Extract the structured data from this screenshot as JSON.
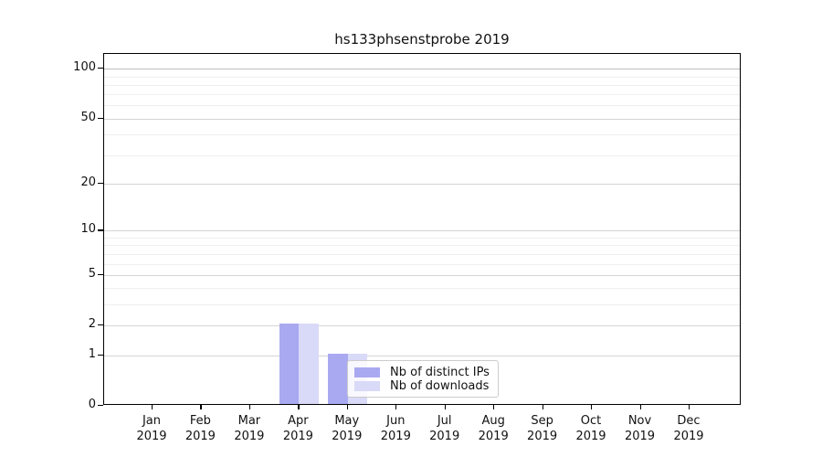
{
  "chart_data": {
    "type": "bar",
    "title": "hs133phsenstprobe 2019",
    "categories": [
      "Jan",
      "Feb",
      "Mar",
      "Apr",
      "May",
      "Jun",
      "Jul",
      "Aug",
      "Sep",
      "Oct",
      "Nov",
      "Dec"
    ],
    "category_year": "2019",
    "series": [
      {
        "name": "Nb of distinct IPs",
        "color": "#a9a9f1",
        "values": [
          0,
          0,
          0,
          2,
          1,
          0,
          0,
          0,
          0,
          0,
          0,
          0
        ]
      },
      {
        "name": "Nb of downloads",
        "color": "#d9d9f8",
        "values": [
          0,
          0,
          0,
          2,
          1,
          0,
          0,
          0,
          0,
          0,
          0,
          0
        ]
      }
    ],
    "xlabel": "",
    "ylabel": "",
    "yscale": "log1p",
    "ylim": [
      0,
      123
    ],
    "yticks": [
      0,
      1,
      2,
      5,
      10,
      20,
      50,
      100
    ],
    "minor_yticks": [
      3,
      4,
      6,
      7,
      8,
      9,
      30,
      40,
      60,
      70,
      80,
      90
    ],
    "grid": "horizontal",
    "legend_position": "inside lower-center",
    "colors": {
      "axis": "#000000",
      "grid_major": "#d4d4d4",
      "grid_minor": "#efefef",
      "grid_top": "#bdbdbd",
      "background": "#ffffff",
      "text": "#111111"
    }
  }
}
